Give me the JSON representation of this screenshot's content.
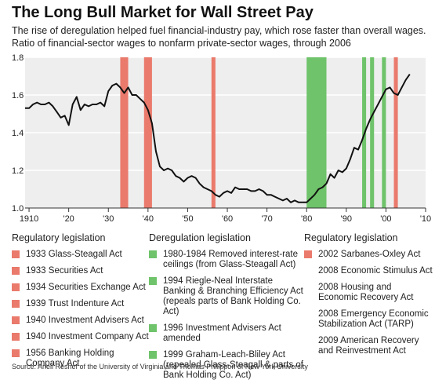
{
  "title": "The Long Bull Market for Wall Street Pay",
  "subtitle1": "The rise of deregulation helped fuel financial-industry pay, which rose faster than overall wages.",
  "subtitle2": "Ratio of financial-sector wages to nonfarm private-sector wages, through 2006",
  "source": "Source: Ariell Reshef of the University of Virginia and Thomas Philippon of New York University",
  "colors": {
    "regulatory": "#ea7a6c",
    "deregulatory": "#6fc36a",
    "line": "#111111",
    "plot_bg": "#eeeeee",
    "grid": "#ffffff"
  },
  "legend": {
    "regulatory": {
      "heading": "Regulatory legislation",
      "items": [
        {
          "year": "1933",
          "text": "Glass-Steagall Act"
        },
        {
          "year": "1933",
          "text": "Securities Act"
        },
        {
          "year": "1934",
          "text": "Securities Exchange Act"
        },
        {
          "year": "1939",
          "text": "Trust Indenture Act"
        },
        {
          "year": "1940",
          "text": "Investment Advisers Act"
        },
        {
          "year": "1940",
          "text": "Investment Company Act"
        },
        {
          "year": "1956",
          "text": "Banking Holding Company Act"
        }
      ]
    },
    "deregulatory": {
      "heading": "Deregulation legislation",
      "items": [
        {
          "year": "1980-1984",
          "text": "Removed interest-rate ceilings (from Glass-Steagall Act)"
        },
        {
          "year": "1994",
          "text": "Riegle-Neal Interstate Banking & Branching Efficiency Act (repeals parts of Bank Holding Co. Act)"
        },
        {
          "year": "1996",
          "text": "Investment Advisers Act amended"
        },
        {
          "year": "1999",
          "text": "Graham-Leach-Bliley Act (repealed Glass-Steagall & parts of Bank Holding Co. Act)"
        }
      ]
    },
    "regulatory2": {
      "heading": "Regulatory legislation",
      "items": [
        {
          "year": "2002",
          "text": "Sarbanes-Oxley Act",
          "swatch": true
        },
        {
          "year": "2008",
          "text": "Economic Stimulus Act",
          "swatch": false
        },
        {
          "year": "2008",
          "text": "Housing and Economic Recovery Act",
          "swatch": false
        },
        {
          "year": "2008",
          "text": "Emergency Economic Stabilization Act (TARP)",
          "swatch": false
        },
        {
          "year": "2009",
          "text": "American Recovery and Reinvestment Act",
          "swatch": false
        }
      ]
    }
  },
  "chart_data": {
    "type": "line",
    "title": "The Long Bull Market for Wall Street Pay",
    "xlim": [
      1909,
      2010
    ],
    "ylim": [
      1.0,
      1.8
    ],
    "x_ticks": [
      1910,
      1920,
      1930,
      1940,
      1950,
      1960,
      1970,
      1980,
      1990,
      2000,
      2010
    ],
    "x_tick_labels": [
      "1910",
      "'20",
      "'30",
      "'40",
      "'50",
      "'60",
      "'70",
      "'80",
      "'90",
      "'00",
      "'10"
    ],
    "y_ticks": [
      1.0,
      1.2,
      1.4,
      1.6,
      1.8
    ],
    "y_tick_labels": [
      "1.0",
      "1.2",
      "1.4",
      "1.6",
      "1.8"
    ],
    "grid": true,
    "bands": [
      {
        "start": 1933,
        "end": 1934,
        "kind": "regulatory"
      },
      {
        "start": 1939,
        "end": 1940,
        "kind": "regulatory"
      },
      {
        "start": 1956,
        "end": 1956,
        "kind": "regulatory"
      },
      {
        "start": 1980,
        "end": 1984,
        "kind": "deregulatory"
      },
      {
        "start": 1994,
        "end": 1994,
        "kind": "deregulatory"
      },
      {
        "start": 1996,
        "end": 1996,
        "kind": "deregulatory"
      },
      {
        "start": 1999,
        "end": 1999,
        "kind": "deregulatory"
      },
      {
        "start": 2002,
        "end": 2002,
        "kind": "regulatory"
      }
    ],
    "series": [
      {
        "x": [
          1909,
          1910,
          1911,
          1912,
          1913,
          1914,
          1915,
          1916,
          1917,
          1918,
          1919,
          1920,
          1921,
          1922,
          1923,
          1924,
          1925,
          1926,
          1927,
          1928,
          1929,
          1930,
          1931,
          1932,
          1933,
          1934,
          1935,
          1936,
          1937,
          1938,
          1939,
          1940,
          1941,
          1942,
          1943,
          1944,
          1945,
          1946,
          1947,
          1948,
          1949,
          1950,
          1951,
          1952,
          1953,
          1954,
          1955,
          1956,
          1957,
          1958,
          1959,
          1960,
          1961,
          1962,
          1963,
          1964,
          1965,
          1966,
          1967,
          1968,
          1969,
          1970,
          1971,
          1972,
          1973,
          1974,
          1975,
          1976,
          1977,
          1978,
          1979,
          1980,
          1981,
          1982,
          1983,
          1984,
          1985,
          1986,
          1987,
          1988,
          1989,
          1990,
          1991,
          1992,
          1993,
          1994,
          1995,
          1996,
          1997,
          1998,
          1999,
          2000,
          2001,
          2002,
          2003,
          2004,
          2005,
          2006
        ],
        "y": [
          1.53,
          1.53,
          1.55,
          1.56,
          1.55,
          1.55,
          1.56,
          1.54,
          1.51,
          1.48,
          1.49,
          1.44,
          1.55,
          1.59,
          1.52,
          1.55,
          1.54,
          1.55,
          1.55,
          1.56,
          1.54,
          1.62,
          1.65,
          1.66,
          1.64,
          1.61,
          1.64,
          1.6,
          1.6,
          1.58,
          1.56,
          1.52,
          1.45,
          1.3,
          1.22,
          1.2,
          1.21,
          1.2,
          1.17,
          1.16,
          1.14,
          1.16,
          1.17,
          1.16,
          1.13,
          1.11,
          1.1,
          1.09,
          1.07,
          1.06,
          1.08,
          1.09,
          1.08,
          1.11,
          1.1,
          1.1,
          1.1,
          1.09,
          1.09,
          1.1,
          1.09,
          1.07,
          1.07,
          1.06,
          1.05,
          1.04,
          1.05,
          1.03,
          1.04,
          1.03,
          1.03,
          1.03,
          1.05,
          1.07,
          1.1,
          1.11,
          1.13,
          1.18,
          1.16,
          1.2,
          1.19,
          1.21,
          1.26,
          1.32,
          1.31,
          1.36,
          1.42,
          1.47,
          1.51,
          1.55,
          1.59,
          1.63,
          1.64,
          1.61,
          1.6,
          1.64,
          1.68,
          1.71
        ]
      }
    ]
  }
}
